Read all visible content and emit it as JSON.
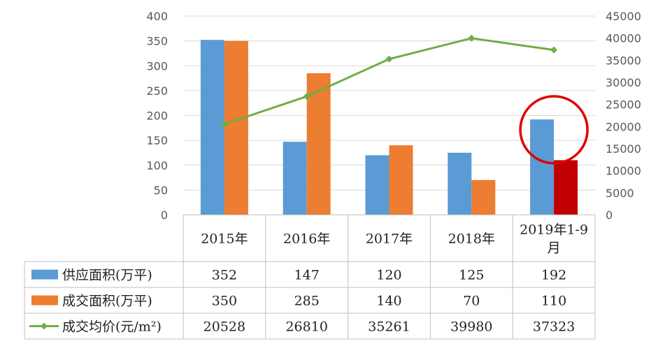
{
  "chart_data": {
    "type": "bar",
    "categories": [
      "2015年",
      "2016年",
      "2017年",
      "2018年",
      "2019年1-9月"
    ],
    "category_lines": [
      [
        "2015年"
      ],
      [
        "2016年"
      ],
      [
        "2017年"
      ],
      [
        "2018年"
      ],
      [
        "2019年1-9",
        "月"
      ]
    ],
    "series": [
      {
        "name": "供应面积(万平)",
        "type": "bar",
        "axis": "left",
        "color": "#5b9bd5",
        "values": [
          352,
          147,
          120,
          125,
          192
        ],
        "table_values": [
          "352",
          "147",
          "120",
          "125",
          "192"
        ]
      },
      {
        "name": "成交面积(万平)",
        "type": "bar",
        "axis": "left",
        "color": "#ed7d31",
        "highlight": {
          "index": 4,
          "color": "#c00000"
        },
        "values": [
          350,
          285,
          140,
          70,
          110
        ],
        "table_values": [
          "350",
          "285",
          "140",
          "70",
          "110"
        ]
      },
      {
        "name": "成交均价(元/m²)",
        "type": "line",
        "axis": "right",
        "color": "#70ad47",
        "values": [
          20528,
          26810,
          35261,
          39980,
          37323
        ],
        "table_values": [
          "20528",
          "26810",
          "35261",
          "39980",
          "37323"
        ]
      }
    ],
    "y_left": {
      "min": 0,
      "max": 400,
      "ticks": [
        "0",
        "50",
        "100",
        "150",
        "200",
        "250",
        "300",
        "350",
        "400"
      ]
    },
    "y_right": {
      "min": 0,
      "max": 45000,
      "ticks": [
        "0",
        "5000",
        "10000",
        "15000",
        "20000",
        "25000",
        "30000",
        "35000",
        "40000",
        "45000"
      ]
    },
    "data_table": true,
    "annotation": {
      "shape": "circle",
      "color": "#e00000",
      "category_index": 4
    },
    "grid": "horizontal",
    "title": "",
    "xlabel": "",
    "ylabel": ""
  }
}
